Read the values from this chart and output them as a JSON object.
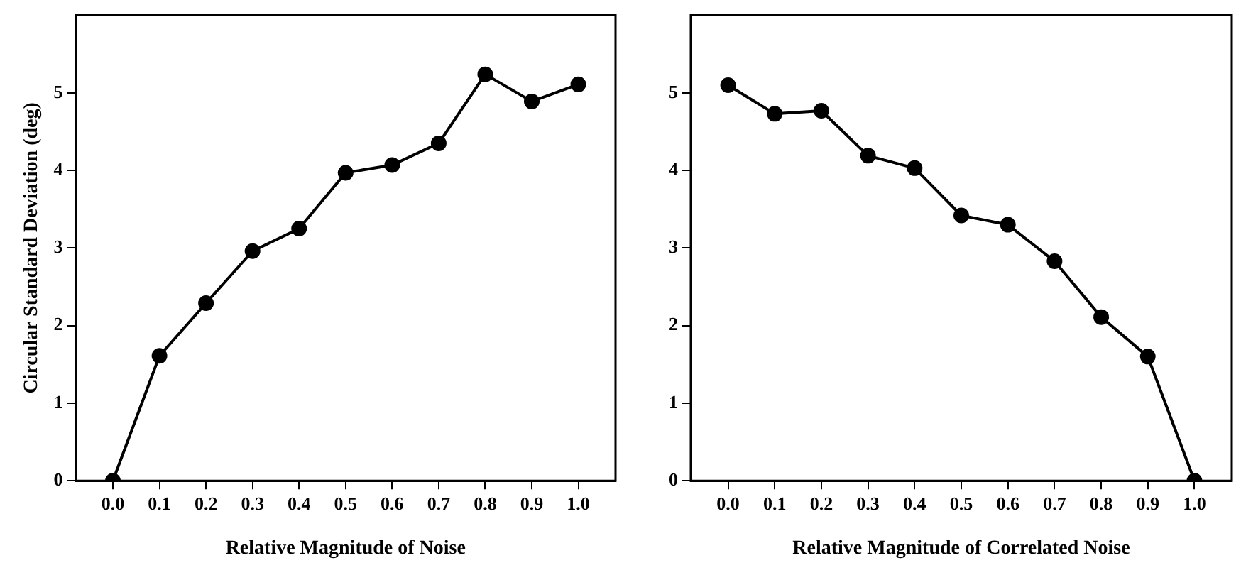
{
  "chart_data": [
    {
      "type": "line",
      "xlabel": "Relative Magnitude of Noise",
      "ylabel": "Circular Standard Deviation (deg)",
      "x": [
        0,
        0.1,
        0.2,
        0.3,
        0.4,
        0.5,
        0.6,
        0.7,
        0.8,
        0.9,
        1.0
      ],
      "series": [
        {
          "color": "#000000",
          "values": [
            0,
            1.61,
            2.29,
            2.96,
            3.25,
            3.97,
            4.07,
            4.35,
            5.24,
            4.89,
            5.11
          ]
        }
      ],
      "xlim": [
        -0.08,
        1.08
      ],
      "ylim": [
        0,
        6
      ],
      "xticks": [
        {
          "value": 0,
          "label": "0.0"
        },
        {
          "value": 0.1,
          "label": "0.1"
        },
        {
          "value": 0.2,
          "label": "0.2"
        },
        {
          "value": 0.3,
          "label": "0.3"
        },
        {
          "value": 0.4,
          "label": "0.4"
        },
        {
          "value": 0.5,
          "label": "0.5"
        },
        {
          "value": 0.6,
          "label": "0.6"
        },
        {
          "value": 0.7,
          "label": "0.7"
        },
        {
          "value": 0.8,
          "label": "0.8"
        },
        {
          "value": 0.9,
          "label": "0.9"
        },
        {
          "value": 1,
          "label": "1.0"
        }
      ],
      "yticks": [
        0,
        1,
        2,
        3,
        4,
        5
      ],
      "marker": "circle"
    },
    {
      "type": "line",
      "xlabel": "Relative Magnitude of Correlated Noise",
      "x": [
        0,
        0.1,
        0.2,
        0.3,
        0.4,
        0.5,
        0.6,
        0.7,
        0.8,
        0.9,
        1.0
      ],
      "series": [
        {
          "color": "#000000",
          "values": [
            5.1,
            4.73,
            4.77,
            4.19,
            4.03,
            3.42,
            3.3,
            2.83,
            2.11,
            1.6,
            0
          ]
        }
      ],
      "xlim": [
        -0.08,
        1.08
      ],
      "ylim": [
        0,
        6
      ],
      "xticks": [
        {
          "value": 0,
          "label": "0.0"
        },
        {
          "value": 0.1,
          "label": "0.1"
        },
        {
          "value": 0.2,
          "label": "0.2"
        },
        {
          "value": 0.3,
          "label": "0.3"
        },
        {
          "value": 0.4,
          "label": "0.4"
        },
        {
          "value": 0.5,
          "label": "0.5"
        },
        {
          "value": 0.6,
          "label": "0.6"
        },
        {
          "value": 0.7,
          "label": "0.7"
        },
        {
          "value": 0.8,
          "label": "0.8"
        },
        {
          "value": 0.9,
          "label": "0.9"
        },
        {
          "value": 1,
          "label": "1.0"
        }
      ],
      "yticks": [
        0,
        1,
        2,
        3,
        4,
        5
      ],
      "marker": "circle"
    }
  ]
}
